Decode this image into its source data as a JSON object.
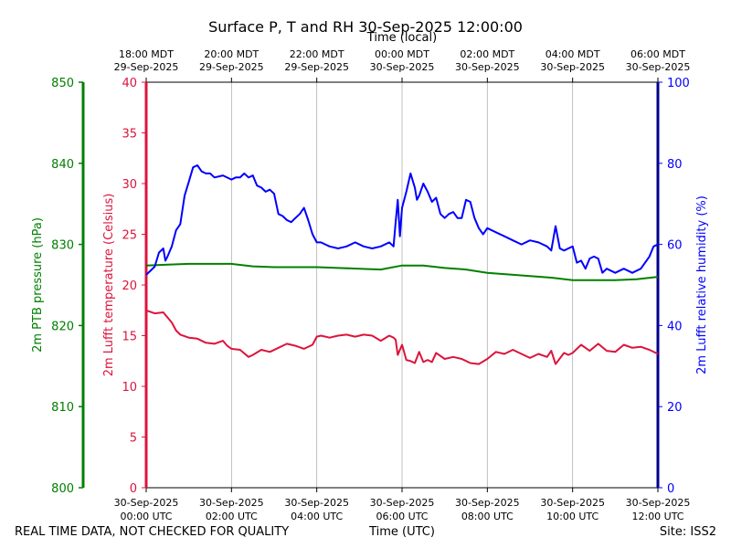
{
  "title": "Surface P, T and RH 30-Sep-2025 12:00:00",
  "footer": {
    "left": "REAL TIME DATA, NOT CHECKED FOR QUALITY",
    "right": "Site: ISS2"
  },
  "colors": {
    "pressure": "#008000",
    "temperature": "#dc143c",
    "humidity": "#0000ff",
    "rh_axis": "#00008b",
    "grid": "#b0b0b0"
  },
  "chart_data": {
    "type": "line",
    "x_unit": "hours since 30-Sep-2025 00:00 UTC",
    "xlim": [
      0,
      12
    ],
    "grid": {
      "vertical": true,
      "horizontal": false
    },
    "top_axis": {
      "label": "Time (local)",
      "ticks": [
        {
          "x": 0,
          "line1": "18:00 MDT",
          "line2": "29-Sep-2025"
        },
        {
          "x": 2,
          "line1": "20:00 MDT",
          "line2": "29-Sep-2025"
        },
        {
          "x": 4,
          "line1": "22:00 MDT",
          "line2": "29-Sep-2025"
        },
        {
          "x": 6,
          "line1": "00:00 MDT",
          "line2": "30-Sep-2025"
        },
        {
          "x": 8,
          "line1": "02:00 MDT",
          "line2": "30-Sep-2025"
        },
        {
          "x": 10,
          "line1": "04:00 MDT",
          "line2": "30-Sep-2025"
        },
        {
          "x": 12,
          "line1": "06:00 MDT",
          "line2": "30-Sep-2025"
        }
      ]
    },
    "bottom_axis": {
      "label": "Time (UTC)",
      "ticks": [
        {
          "x": 0,
          "line1": "30-Sep-2025",
          "line2": "00:00 UTC"
        },
        {
          "x": 2,
          "line1": "30-Sep-2025",
          "line2": "02:00 UTC"
        },
        {
          "x": 4,
          "line1": "30-Sep-2025",
          "line2": "04:00 UTC"
        },
        {
          "x": 6,
          "line1": "30-Sep-2025",
          "line2": "06:00 UTC"
        },
        {
          "x": 8,
          "line1": "30-Sep-2025",
          "line2": "08:00 UTC"
        },
        {
          "x": 10,
          "line1": "30-Sep-2025",
          "line2": "10:00 UTC"
        },
        {
          "x": 12,
          "line1": "30-Sep-2025",
          "line2": "12:00 UTC"
        }
      ]
    },
    "axes": {
      "pressure": {
        "label": "2m PTB pressure (hPa)",
        "ylim": [
          800,
          850
        ],
        "ticks": [
          800,
          810,
          820,
          830,
          840,
          850
        ]
      },
      "temperature": {
        "label": "2m Lufft temperature (Celsius)",
        "ylim": [
          0,
          40
        ],
        "ticks": [
          0,
          5,
          10,
          15,
          20,
          25,
          30,
          35,
          40
        ]
      },
      "humidity": {
        "label": "2m Lufft relative humidity (%)",
        "ylim": [
          0,
          100
        ],
        "ticks": [
          0,
          20,
          40,
          60,
          80,
          100
        ]
      }
    },
    "series": [
      {
        "name": "2m PTB pressure (hPa)",
        "axis": "pressure",
        "x": [
          0,
          0.5,
          1,
          1.5,
          2,
          2.5,
          3,
          3.5,
          4,
          4.5,
          5,
          5.5,
          6,
          6.5,
          7,
          7.5,
          8,
          8.5,
          9,
          9.5,
          10,
          10.5,
          11,
          11.5,
          12
        ],
        "y": [
          827.4,
          827.5,
          827.6,
          827.6,
          827.6,
          827.3,
          827.2,
          827.2,
          827.2,
          827.1,
          827.0,
          826.9,
          827.4,
          827.4,
          827.1,
          826.9,
          826.5,
          826.3,
          826.1,
          825.9,
          825.6,
          825.6,
          825.6,
          825.7,
          826.0
        ]
      },
      {
        "name": "2m Lufft temperature (Celsius)",
        "axis": "temperature",
        "x": [
          0,
          0.2,
          0.4,
          0.5,
          0.6,
          0.7,
          0.8,
          1.0,
          1.2,
          1.4,
          1.6,
          1.8,
          1.9,
          2.0,
          2.2,
          2.4,
          2.5,
          2.7,
          2.9,
          3.1,
          3.3,
          3.5,
          3.7,
          3.9,
          4.0,
          4.1,
          4.3,
          4.5,
          4.7,
          4.9,
          5.1,
          5.3,
          5.5,
          5.7,
          5.8,
          5.85,
          5.9,
          6.0,
          6.1,
          6.2,
          6.3,
          6.4,
          6.5,
          6.6,
          6.7,
          6.8,
          7.0,
          7.2,
          7.4,
          7.6,
          7.8,
          8.0,
          8.2,
          8.4,
          8.6,
          8.8,
          9.0,
          9.2,
          9.4,
          9.5,
          9.6,
          9.8,
          9.9,
          10.0,
          10.2,
          10.4,
          10.6,
          10.8,
          11.0,
          11.2,
          11.4,
          11.6,
          11.8,
          12.0
        ],
        "y": [
          17.5,
          17.2,
          17.3,
          16.8,
          16.3,
          15.5,
          15.1,
          14.8,
          14.7,
          14.3,
          14.2,
          14.5,
          14.0,
          13.7,
          13.6,
          12.9,
          13.1,
          13.6,
          13.4,
          13.8,
          14.2,
          14.0,
          13.7,
          14.1,
          14.9,
          15.0,
          14.8,
          15.0,
          15.1,
          14.9,
          15.1,
          15.0,
          14.5,
          15.0,
          14.8,
          14.6,
          13.1,
          14.1,
          12.6,
          12.5,
          12.3,
          13.4,
          12.4,
          12.6,
          12.4,
          13.3,
          12.7,
          12.9,
          12.7,
          12.3,
          12.2,
          12.7,
          13.4,
          13.2,
          13.6,
          13.2,
          12.8,
          13.2,
          12.9,
          13.5,
          12.2,
          13.3,
          13.1,
          13.3,
          14.1,
          13.5,
          14.2,
          13.5,
          13.4,
          14.1,
          13.8,
          13.9,
          13.6,
          13.2
        ]
      },
      {
        "name": "2m Lufft relative humidity (%)",
        "axis": "humidity",
        "x": [
          0,
          0.2,
          0.3,
          0.4,
          0.45,
          0.5,
          0.6,
          0.7,
          0.8,
          0.9,
          1.0,
          1.1,
          1.2,
          1.3,
          1.4,
          1.5,
          1.6,
          1.8,
          2.0,
          2.1,
          2.2,
          2.3,
          2.4,
          2.5,
          2.6,
          2.7,
          2.8,
          2.9,
          3.0,
          3.1,
          3.2,
          3.3,
          3.4,
          3.5,
          3.6,
          3.7,
          3.8,
          3.9,
          4.0,
          4.1,
          4.2,
          4.3,
          4.5,
          4.7,
          4.9,
          5.1,
          5.3,
          5.5,
          5.7,
          5.8,
          5.85,
          5.9,
          5.95,
          6.0,
          6.1,
          6.2,
          6.3,
          6.35,
          6.4,
          6.5,
          6.6,
          6.7,
          6.8,
          6.9,
          7.0,
          7.1,
          7.2,
          7.3,
          7.4,
          7.5,
          7.6,
          7.7,
          7.8,
          7.9,
          8.0,
          8.2,
          8.4,
          8.6,
          8.8,
          9.0,
          9.2,
          9.4,
          9.5,
          9.6,
          9.7,
          9.8,
          9.9,
          10.0,
          10.1,
          10.2,
          10.3,
          10.4,
          10.5,
          10.6,
          10.7,
          10.8,
          11.0,
          11.2,
          11.4,
          11.6,
          11.8,
          11.9,
          12.0
        ],
        "y": [
          52.5,
          54.5,
          58.0,
          59.0,
          56.0,
          57.0,
          59.5,
          63.5,
          65.0,
          72.0,
          75.5,
          79.0,
          79.5,
          78.0,
          77.5,
          77.5,
          76.5,
          77.0,
          76.0,
          76.5,
          76.5,
          77.5,
          76.5,
          77.0,
          74.5,
          74.0,
          73.0,
          73.5,
          72.5,
          67.5,
          67.0,
          66.0,
          65.5,
          66.5,
          67.5,
          69.0,
          66.0,
          62.5,
          60.5,
          60.5,
          60.0,
          59.5,
          59.0,
          59.5,
          60.5,
          59.5,
          59.0,
          59.5,
          60.5,
          59.5,
          65.5,
          71.0,
          62.0,
          69.0,
          73.0,
          77.5,
          74.0,
          71.0,
          72.0,
          75.0,
          73.0,
          70.5,
          71.5,
          67.5,
          66.5,
          67.5,
          68.0,
          66.5,
          66.5,
          71.0,
          70.5,
          66.5,
          64.0,
          62.5,
          64.0,
          63.0,
          62.0,
          61.0,
          60.0,
          61.0,
          60.5,
          59.5,
          58.5,
          64.5,
          59.0,
          58.5,
          59.0,
          59.5,
          55.5,
          56.0,
          54.0,
          56.5,
          57.0,
          56.5,
          53.0,
          54.0,
          53.0,
          54.0,
          53.0,
          54.0,
          57.0,
          59.5,
          60.0
        ]
      }
    ]
  }
}
